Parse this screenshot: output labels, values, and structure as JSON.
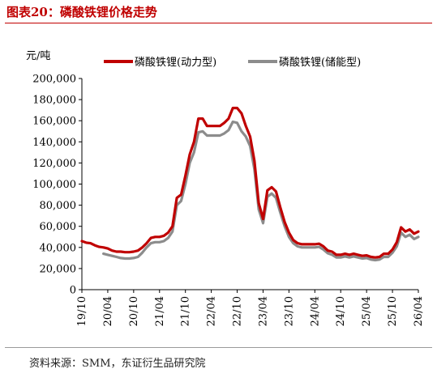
{
  "figure": {
    "title": "图表20：磷酸铁锂价格走势",
    "source": "资料来源：SMM，东证衍生品研究院"
  },
  "colors": {
    "title": "#c00000",
    "power_series": "#c00000",
    "storage_series": "#8c8c8c",
    "axis": "#000000"
  },
  "chart_data": {
    "type": "line",
    "unit_label": "元/吨",
    "ylim": [
      0,
      200000
    ],
    "yticks": [
      0,
      20000,
      40000,
      60000,
      80000,
      100000,
      120000,
      140000,
      160000,
      180000,
      200000
    ],
    "ytick_labels": [
      "0",
      "20,000",
      "40,000",
      "60,000",
      "80,000",
      "100,000",
      "120,000",
      "140,000",
      "160,000",
      "180,000",
      "200,000"
    ],
    "xlim": [
      "2019-10",
      "2026-04"
    ],
    "xticks": [
      "2019-10",
      "2020-04",
      "2020-10",
      "2021-04",
      "2021-10",
      "2022-04",
      "2022-10",
      "2023-04",
      "2023-10",
      "2024-04",
      "2024-10",
      "2025-04",
      "2025-10",
      "2026-04"
    ],
    "xtick_labels": [
      "19/10",
      "20/04",
      "20/10",
      "21/04",
      "21/10",
      "22/04",
      "22/10",
      "23/04",
      "23/10",
      "24/04",
      "24/10",
      "25/04",
      "25/10",
      "26/04"
    ],
    "legend": "top",
    "grid": false,
    "series": [
      {
        "name": "磷酸铁锂(动力型)",
        "color": "#c00000",
        "points": [
          [
            "2019-10",
            46000
          ],
          [
            "2019-11",
            44500
          ],
          [
            "2019-12",
            44000
          ],
          [
            "2020-01",
            42000
          ],
          [
            "2020-02",
            40500
          ],
          [
            "2020-03",
            40000
          ],
          [
            "2020-04",
            39000
          ],
          [
            "2020-05",
            37000
          ],
          [
            "2020-06",
            36000
          ],
          [
            "2020-07",
            36000
          ],
          [
            "2020-08",
            35500
          ],
          [
            "2020-09",
            35500
          ],
          [
            "2020-10",
            36000
          ],
          [
            "2020-11",
            37000
          ],
          [
            "2020-12",
            40000
          ],
          [
            "2021-01",
            44000
          ],
          [
            "2021-02",
            49000
          ],
          [
            "2021-03",
            50000
          ],
          [
            "2021-04",
            50000
          ],
          [
            "2021-05",
            51000
          ],
          [
            "2021-06",
            54000
          ],
          [
            "2021-07",
            60000
          ],
          [
            "2021-08",
            87000
          ],
          [
            "2021-09",
            90000
          ],
          [
            "2021-10",
            108000
          ],
          [
            "2021-11",
            128000
          ],
          [
            "2021-12",
            140000
          ],
          [
            "2022-01",
            162000
          ],
          [
            "2022-02",
            162000
          ],
          [
            "2022-03",
            155000
          ],
          [
            "2022-04",
            155000
          ],
          [
            "2022-05",
            155000
          ],
          [
            "2022-06",
            155000
          ],
          [
            "2022-07",
            158000
          ],
          [
            "2022-08",
            162000
          ],
          [
            "2022-09",
            172000
          ],
          [
            "2022-10",
            172000
          ],
          [
            "2022-11",
            167000
          ],
          [
            "2022-12",
            155000
          ],
          [
            "2023-01",
            145000
          ],
          [
            "2023-02",
            122000
          ],
          [
            "2023-03",
            82000
          ],
          [
            "2023-04",
            67000
          ],
          [
            "2023-05",
            94000
          ],
          [
            "2023-06",
            97000
          ],
          [
            "2023-07",
            93000
          ],
          [
            "2023-08",
            78000
          ],
          [
            "2023-09",
            64000
          ],
          [
            "2023-10",
            54000
          ],
          [
            "2023-11",
            47000
          ],
          [
            "2023-12",
            44000
          ],
          [
            "2024-01",
            43000
          ],
          [
            "2024-02",
            43000
          ],
          [
            "2024-03",
            43000
          ],
          [
            "2024-04",
            43000
          ],
          [
            "2024-05",
            43500
          ],
          [
            "2024-06",
            41000
          ],
          [
            "2024-07",
            37000
          ],
          [
            "2024-08",
            36000
          ],
          [
            "2024-09",
            33000
          ],
          [
            "2024-10",
            33000
          ],
          [
            "2024-11",
            34000
          ],
          [
            "2024-12",
            33000
          ],
          [
            "2025-01",
            34000
          ],
          [
            "2025-02",
            33000
          ],
          [
            "2025-03",
            32000
          ],
          [
            "2025-04",
            32500
          ],
          [
            "2025-05",
            31000
          ],
          [
            "2025-06",
            30500
          ],
          [
            "2025-07",
            31000
          ],
          [
            "2025-08",
            34000
          ],
          [
            "2025-09",
            34000
          ],
          [
            "2025-10",
            38000
          ],
          [
            "2025-11",
            45000
          ],
          [
            "2025-12",
            59000
          ],
          [
            "2026-01",
            55000
          ],
          [
            "2026-02",
            57000
          ],
          [
            "2026-03",
            53000
          ],
          [
            "2026-04",
            55000
          ]
        ]
      },
      {
        "name": "磷酸铁锂(储能型)",
        "color": "#8c8c8c",
        "points": [
          [
            "2020-03",
            34000
          ],
          [
            "2020-04",
            33000
          ],
          [
            "2020-05",
            32000
          ],
          [
            "2020-06",
            31000
          ],
          [
            "2020-07",
            30000
          ],
          [
            "2020-08",
            29500
          ],
          [
            "2020-09",
            29500
          ],
          [
            "2020-10",
            30000
          ],
          [
            "2020-11",
            31000
          ],
          [
            "2020-12",
            35000
          ],
          [
            "2021-01",
            40000
          ],
          [
            "2021-02",
            44000
          ],
          [
            "2021-03",
            45000
          ],
          [
            "2021-04",
            45000
          ],
          [
            "2021-05",
            46000
          ],
          [
            "2021-06",
            49000
          ],
          [
            "2021-07",
            55000
          ],
          [
            "2021-08",
            80000
          ],
          [
            "2021-09",
            84000
          ],
          [
            "2021-10",
            100000
          ],
          [
            "2021-11",
            120000
          ],
          [
            "2021-12",
            130000
          ],
          [
            "2022-01",
            149000
          ],
          [
            "2022-02",
            150000
          ],
          [
            "2022-03",
            146000
          ],
          [
            "2022-04",
            146000
          ],
          [
            "2022-05",
            146000
          ],
          [
            "2022-06",
            146000
          ],
          [
            "2022-07",
            148000
          ],
          [
            "2022-08",
            151000
          ],
          [
            "2022-09",
            159000
          ],
          [
            "2022-10",
            158000
          ],
          [
            "2022-11",
            150000
          ],
          [
            "2022-12",
            145000
          ],
          [
            "2023-01",
            136000
          ],
          [
            "2023-02",
            114000
          ],
          [
            "2023-03",
            76000
          ],
          [
            "2023-04",
            63000
          ],
          [
            "2023-05",
            88000
          ],
          [
            "2023-06",
            91000
          ],
          [
            "2023-07",
            87000
          ],
          [
            "2023-08",
            73000
          ],
          [
            "2023-09",
            60000
          ],
          [
            "2023-10",
            50000
          ],
          [
            "2023-11",
            44000
          ],
          [
            "2023-12",
            41000
          ],
          [
            "2024-01",
            40000
          ],
          [
            "2024-02",
            40000
          ],
          [
            "2024-03",
            40000
          ],
          [
            "2024-04",
            40000
          ],
          [
            "2024-05",
            40500
          ],
          [
            "2024-06",
            38000
          ],
          [
            "2024-07",
            34500
          ],
          [
            "2024-08",
            33000
          ],
          [
            "2024-09",
            30500
          ],
          [
            "2024-10",
            30500
          ],
          [
            "2024-11",
            31500
          ],
          [
            "2024-12",
            30500
          ],
          [
            "2025-01",
            31500
          ],
          [
            "2025-02",
            30500
          ],
          [
            "2025-03",
            29500
          ],
          [
            "2025-04",
            30000
          ],
          [
            "2025-05",
            28500
          ],
          [
            "2025-06",
            28000
          ],
          [
            "2025-07",
            28500
          ],
          [
            "2025-08",
            31000
          ],
          [
            "2025-09",
            31000
          ],
          [
            "2025-10",
            35000
          ],
          [
            "2025-11",
            41000
          ],
          [
            "2025-12",
            54000
          ],
          [
            "2026-01",
            50000
          ],
          [
            "2026-02",
            52000
          ],
          [
            "2026-03",
            48000
          ],
          [
            "2026-04",
            50000
          ]
        ]
      }
    ]
  }
}
